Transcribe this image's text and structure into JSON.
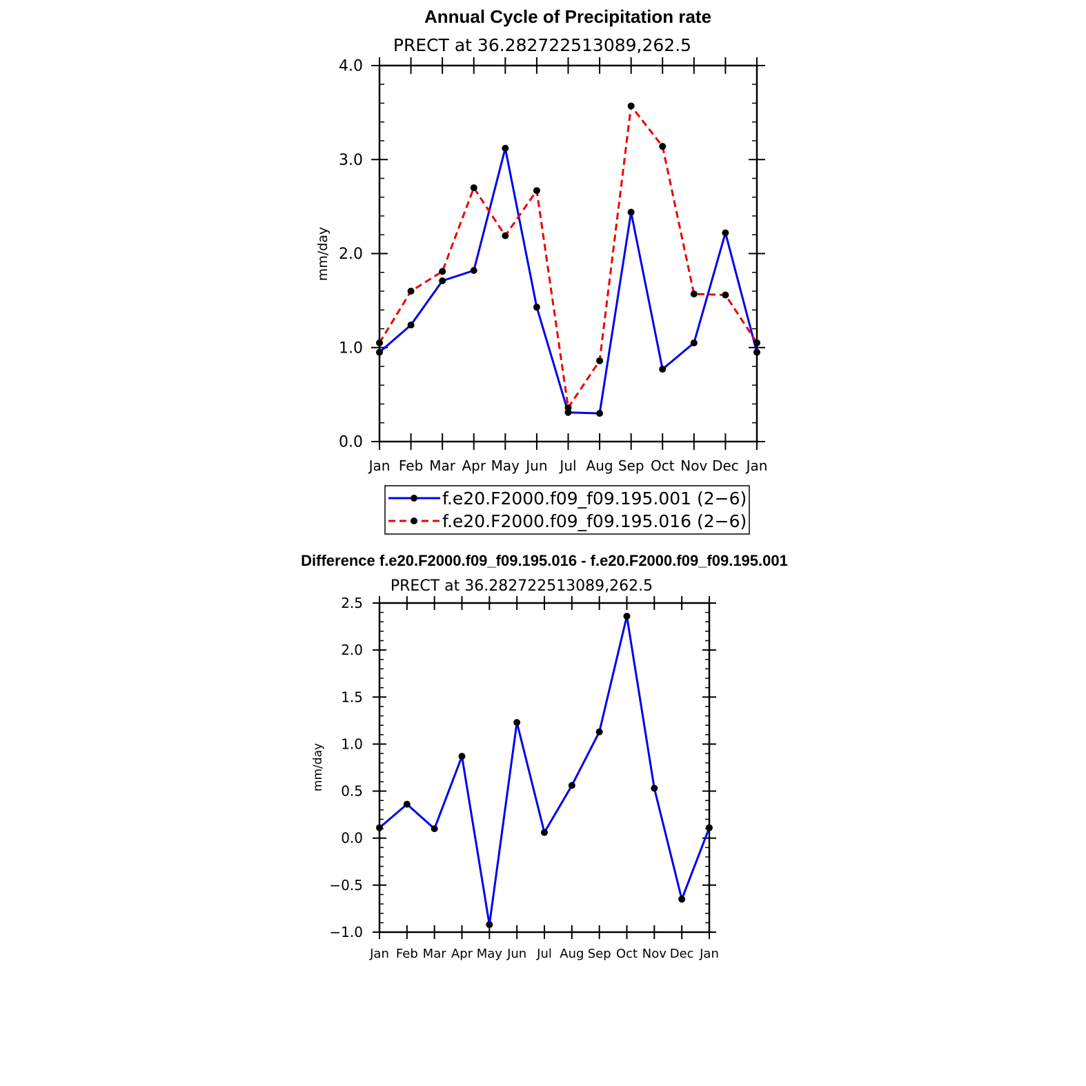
{
  "chart_data": [
    {
      "type": "line",
      "title": "Annual Cycle of Precipitation rate",
      "subtitle": "PRECT at 36.282722513089,262.5",
      "xlabel": "",
      "ylabel": "mm/day",
      "categories": [
        "Jan",
        "Feb",
        "Mar",
        "Apr",
        "May",
        "Jun",
        "Jul",
        "Aug",
        "Sep",
        "Oct",
        "Nov",
        "Dec",
        "Jan"
      ],
      "ylim": [
        0.0,
        4.0
      ],
      "yticks": [
        "0.0",
        "1.0",
        "2.0",
        "3.0",
        "4.0"
      ],
      "series": [
        {
          "name": "f.e20.F2000.f09_f09.195.001 (2−6)",
          "color": "#0000ee",
          "dash": "solid",
          "values": [
            0.95,
            1.24,
            1.71,
            1.82,
            3.12,
            1.43,
            0.31,
            0.3,
            2.44,
            0.77,
            1.05,
            2.22,
            0.95
          ]
        },
        {
          "name": "f.e20.F2000.f09_f09.195.016 (2−6)",
          "color": "#ee0000",
          "dash": "dashed",
          "values": [
            1.05,
            1.6,
            1.81,
            2.7,
            2.19,
            2.67,
            0.36,
            0.86,
            3.57,
            3.14,
            1.57,
            1.56,
            1.05
          ]
        }
      ],
      "legend": "bottom"
    },
    {
      "type": "line",
      "title": "Difference f.e20.F2000.f09_f09.195.016 - f.e20.F2000.f09_f09.195.001",
      "subtitle": "PRECT at 36.282722513089,262.5",
      "xlabel": "",
      "ylabel": "mm/day",
      "categories": [
        "Jan",
        "Feb",
        "Mar",
        "Apr",
        "May",
        "Jun",
        "Jul",
        "Aug",
        "Sep",
        "Oct",
        "Nov",
        "Dec",
        "Jan"
      ],
      "ylim": [
        -1.0,
        2.5
      ],
      "yticks": [
        "−1.0",
        "−0.5",
        "0.0",
        "0.5",
        "1.0",
        "1.5",
        "2.0",
        "2.5"
      ],
      "series": [
        {
          "color": "#0000ee",
          "dash": "solid",
          "values": [
            0.11,
            0.36,
            0.1,
            0.87,
            -0.92,
            1.23,
            0.06,
            0.56,
            1.13,
            2.36,
            0.53,
            -0.65,
            0.11
          ]
        }
      ]
    }
  ]
}
